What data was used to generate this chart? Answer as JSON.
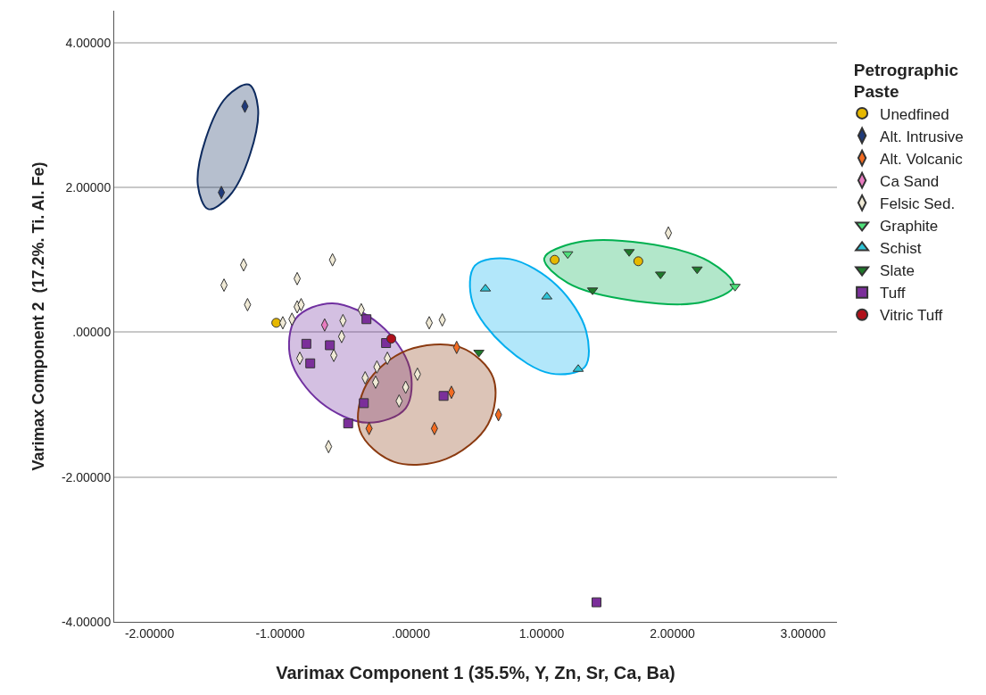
{
  "chart_data": {
    "type": "scatter",
    "xlabel": "Varimax Component 1 (35.5%, Y, Zn, Sr, Ca, Ba)",
    "ylabel": "Varimax Component 2  (17.2%. Ti. Al. Fe)",
    "legend_title": "Petrographic Paste",
    "legend": "top right",
    "grid": "y",
    "xlim": [
      -2.27,
      3.26
    ],
    "ylim": [
      -4,
      4.44
    ],
    "xticks": [
      {
        "value": -2,
        "label": "-2.00000"
      },
      {
        "value": -1,
        "label": "-1.00000"
      },
      {
        "value": 0,
        "label": ".00000"
      },
      {
        "value": 1,
        "label": "1.00000"
      },
      {
        "value": 2,
        "label": "2.00000"
      },
      {
        "value": 3,
        "label": "3.00000"
      }
    ],
    "yticks": [
      {
        "value": -4,
        "label": "-4.00000"
      },
      {
        "value": -2,
        "label": "-2.00000"
      },
      {
        "value": 0,
        "label": ".00000"
      },
      {
        "value": 2,
        "label": "2.00000"
      },
      {
        "value": 4,
        "label": "4.00000"
      }
    ],
    "series": [
      {
        "type": "area",
        "color": "#0d2a5e",
        "x": [
          -1.24,
          -1.17,
          -1.23,
          -1.39,
          -1.55,
          -1.63,
          -1.57,
          -1.41,
          -1.24
        ],
        "values": [
          3.42,
          3.1,
          2.46,
          1.88,
          1.7,
          2.03,
          2.67,
          3.25,
          3.42
        ]
      },
      {
        "type": "area",
        "color": "#7030a0",
        "x": [
          -0.04,
          -0.33,
          -0.69,
          -0.92,
          -0.88,
          -0.6,
          -0.24,
          -0.01,
          -0.04
        ],
        "values": [
          -1.05,
          -1.25,
          -0.97,
          -0.37,
          0.19,
          0.4,
          0.11,
          -0.49,
          -1.05
        ]
      },
      {
        "type": "area",
        "color": "#8b3a10",
        "x": [
          0.63,
          0.59,
          0.27,
          -0.13,
          -0.39,
          -0.34,
          -0.03,
          0.38,
          0.63
        ],
        "values": [
          -0.63,
          -1.27,
          -1.75,
          -1.79,
          -1.36,
          -0.72,
          -0.25,
          -0.21,
          -0.63
        ]
      },
      {
        "type": "area",
        "color": "#00aeef",
        "x": [
          1.33,
          1.07,
          0.72,
          0.47,
          0.49,
          0.76,
          1.12,
          1.34,
          1.33
        ],
        "values": [
          -0.48,
          -0.57,
          -0.2,
          0.42,
          0.92,
          1.01,
          0.64,
          0.02,
          -0.48
        ]
      },
      {
        "type": "area",
        "color": "#00b050",
        "x": [
          2.47,
          2.24,
          1.72,
          1.2,
          1.02,
          1.27,
          1.78,
          2.28,
          2.47
        ],
        "values": [
          0.64,
          0.42,
          0.43,
          0.68,
          1.02,
          1.24,
          1.23,
          0.98,
          0.64
        ]
      },
      {
        "name": "Unedfined",
        "color": "#e6b800",
        "marker": "circle",
        "x": [
          -1.03,
          1.1,
          1.74
        ],
        "values": [
          0.13,
          1.0,
          0.98
        ]
      },
      {
        "name": "Alt. Intrusive",
        "color": "#1f3a7a",
        "marker": "diamond",
        "x": [
          -1.27,
          -1.45
        ],
        "values": [
          3.12,
          1.93
        ]
      },
      {
        "name": "Alt. Volcanic",
        "color": "#f26b21",
        "marker": "diamond",
        "x": [
          -0.32,
          0.35,
          0.31,
          0.18,
          0.67
        ],
        "values": [
          -1.33,
          -0.21,
          -0.83,
          -1.33,
          -1.14
        ]
      },
      {
        "name": "Ca Sand",
        "color": "#e87bc0",
        "marker": "diamond",
        "x": [
          -0.66
        ],
        "values": [
          0.1
        ]
      },
      {
        "name": "Felsic Sed.",
        "color": "#f0ead6",
        "marker": "diamond",
        "x": [
          -1.43,
          -1.28,
          -1.25,
          -0.87,
          -0.6,
          -0.87,
          -0.84,
          -0.91,
          -0.98,
          -0.52,
          -0.53,
          -0.85,
          -0.59,
          -0.38,
          -0.26,
          -0.18,
          -0.35,
          -0.27,
          0.05,
          -0.04,
          -0.09,
          -0.63,
          0.14,
          0.24,
          1.97
        ],
        "values": [
          0.65,
          0.93,
          0.38,
          0.74,
          1.0,
          0.35,
          0.38,
          0.18,
          0.13,
          0.16,
          -0.06,
          -0.36,
          -0.32,
          0.31,
          -0.48,
          -0.36,
          -0.63,
          -0.69,
          -0.58,
          -0.76,
          -0.95,
          -1.58,
          0.13,
          0.17,
          1.37
        ]
      },
      {
        "name": "Graphite",
        "color": "#4ee07a",
        "marker": "triangle-down",
        "x": [
          1.2,
          2.48
        ],
        "values": [
          1.08,
          0.63
        ]
      },
      {
        "name": "Schist",
        "color": "#2ec4d6",
        "marker": "triangle",
        "x": [
          0.57,
          1.04,
          1.28
        ],
        "values": [
          0.6,
          0.49,
          -0.51
        ]
      },
      {
        "name": "Slate",
        "color": "#1e7a2a",
        "marker": "triangle-down",
        "x": [
          0.52,
          1.67,
          1.91,
          2.19,
          1.39
        ],
        "values": [
          -0.28,
          1.11,
          0.8,
          0.87,
          0.58
        ]
      },
      {
        "name": "Tuff",
        "color": "#7b2f9a",
        "marker": "square",
        "x": [
          -0.8,
          -0.62,
          -0.77,
          -0.34,
          -0.36,
          -0.48,
          -0.19,
          0.25,
          1.42
        ],
        "values": [
          -0.16,
          -0.18,
          -0.43,
          0.18,
          -0.98,
          -1.26,
          -0.15,
          -0.88,
          -3.73
        ]
      },
      {
        "name": "Vitric Tuff",
        "color": "#b0101a",
        "marker": "circle",
        "x": [
          -0.15
        ],
        "values": [
          -0.09
        ]
      }
    ]
  }
}
